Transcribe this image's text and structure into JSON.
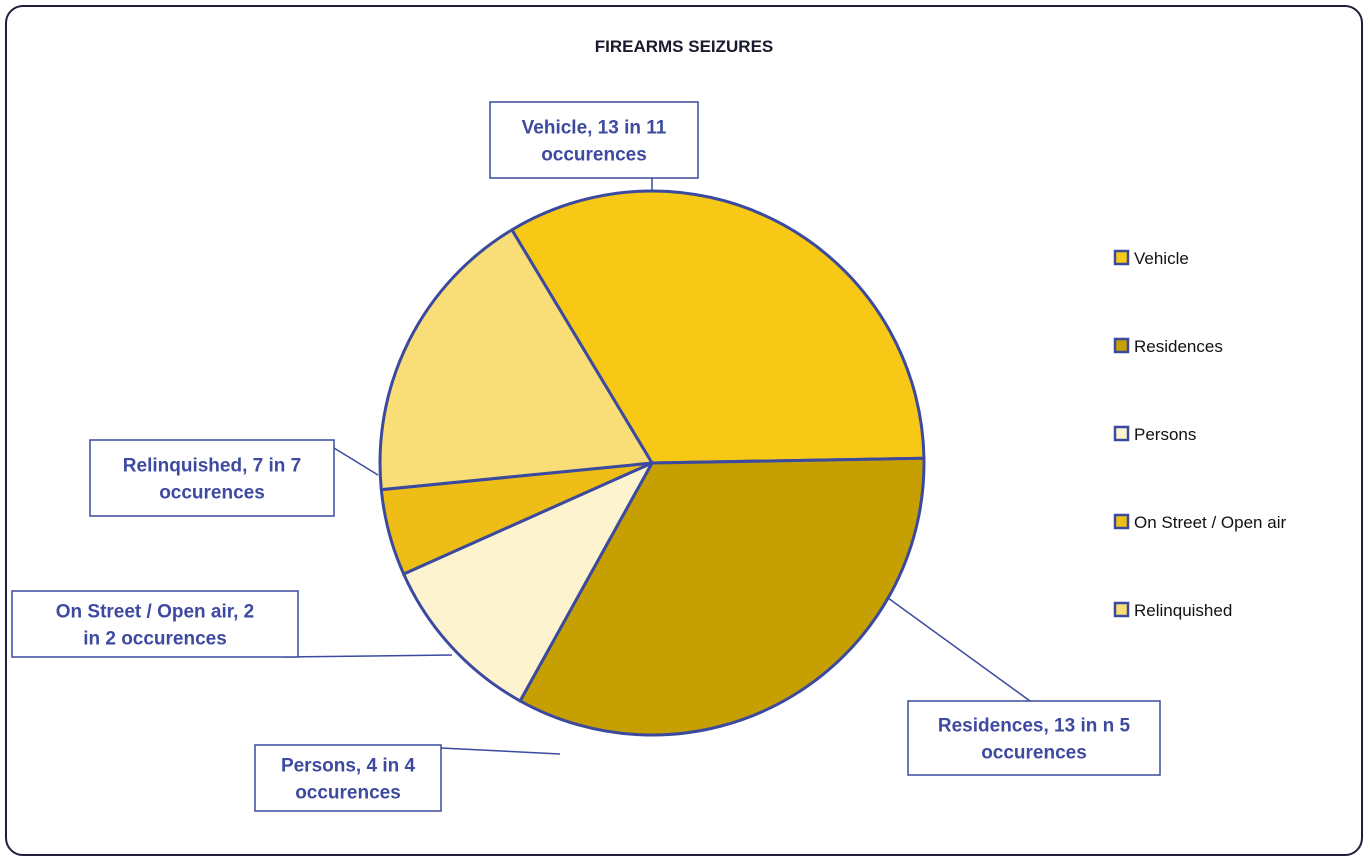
{
  "chart_data": {
    "type": "pie",
    "title": "FIREARMS SEIZURES",
    "slices": [
      {
        "name": "Vehicle",
        "value": 13,
        "color": "#F7C815",
        "label": "Vehicle, 13 in   11 occurences"
      },
      {
        "name": "Residences",
        "value": 13,
        "color": "#C6A002",
        "label": "Residences,  13 in n 5 occurences"
      },
      {
        "name": "Persons",
        "value": 4,
        "color": "#FEF3CF",
        "label": "Persons,  4 in 4 occurences"
      },
      {
        "name": "On Street / Open air",
        "value": 2,
        "color": "#EEBE17",
        "label": "On Street / Open air, 2 in 2 occurences"
      },
      {
        "name": "Relinquished",
        "value": 7,
        "color": "#F9DD77",
        "label": "Relinquished, 7 in  7 occurences"
      }
    ],
    "legend_position": "right",
    "edge_color": "#3B4A9E"
  }
}
